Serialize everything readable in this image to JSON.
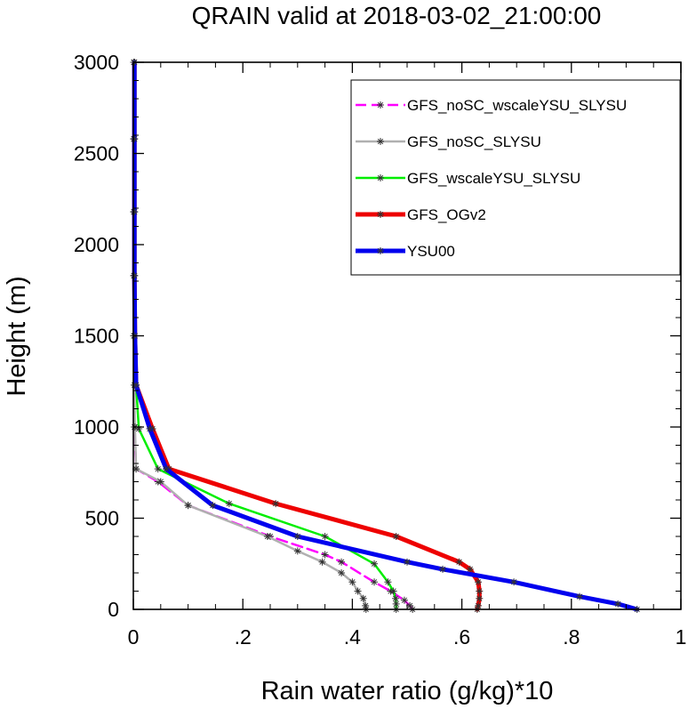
{
  "chart_data": {
    "type": "line",
    "title": "QRAIN valid at 2018-03-02_21:00:00",
    "xlabel": "Rain water ratio (g/kg)*10",
    "ylabel": "Height (m)",
    "xlim": [
      0,
      1
    ],
    "ylim": [
      0,
      3000
    ],
    "xticks": [
      0,
      0.2,
      0.4,
      0.6,
      0.8,
      1
    ],
    "xtick_labels": [
      "0",
      ".2",
      ".4",
      ".6",
      ".8",
      "1"
    ],
    "yticks": [
      0,
      500,
      1000,
      1500,
      2000,
      2500,
      3000
    ],
    "ytick_labels": [
      "0",
      "500",
      "1000",
      "1500",
      "2000",
      "2500",
      "3000"
    ],
    "grid": false,
    "legend_position": "top-right",
    "series": [
      {
        "name": "GFS_noSC_wscaleYSU_SLYSU",
        "color": "#ff00ff",
        "dashed": true,
        "width": 2.5,
        "points": [
          [
            0.51,
            0
          ],
          [
            0.505,
            20
          ],
          [
            0.495,
            50
          ],
          [
            0.47,
            100
          ],
          [
            0.44,
            150
          ],
          [
            0.38,
            260
          ],
          [
            0.35,
            300
          ],
          [
            0.25,
            400
          ],
          [
            0.1,
            570
          ],
          [
            0.045,
            700
          ],
          [
            0.005,
            770
          ],
          [
            0.002,
            1000
          ],
          [
            0.002,
            1230
          ],
          [
            0.001,
            1500
          ],
          [
            0.001,
            1830
          ],
          [
            0.001,
            2180
          ],
          [
            0.001,
            2580
          ],
          [
            0.001,
            3000
          ]
        ]
      },
      {
        "name": "GFS_noSC_SLYSU",
        "color": "#b0b0b0",
        "dashed": false,
        "width": 2.5,
        "points": [
          [
            0.425,
            0
          ],
          [
            0.424,
            20
          ],
          [
            0.42,
            60
          ],
          [
            0.41,
            100
          ],
          [
            0.4,
            150
          ],
          [
            0.38,
            200
          ],
          [
            0.345,
            260
          ],
          [
            0.3,
            320
          ],
          [
            0.245,
            400
          ],
          [
            0.1,
            570
          ],
          [
            0.05,
            700
          ],
          [
            0.005,
            770
          ],
          [
            0.003,
            1000
          ],
          [
            0.002,
            1230
          ],
          [
            0.001,
            1500
          ],
          [
            0.001,
            1830
          ],
          [
            0.001,
            2180
          ],
          [
            0.001,
            2580
          ],
          [
            0.001,
            3000
          ]
        ]
      },
      {
        "name": "GFS_wscaleYSU_SLYSU",
        "color": "#00ee00",
        "dashed": false,
        "width": 2.5,
        "points": [
          [
            0.48,
            0
          ],
          [
            0.48,
            30
          ],
          [
            0.479,
            60
          ],
          [
            0.475,
            100
          ],
          [
            0.465,
            150
          ],
          [
            0.44,
            250
          ],
          [
            0.35,
            400
          ],
          [
            0.175,
            580
          ],
          [
            0.045,
            770
          ],
          [
            0.01,
            990
          ],
          [
            0.005,
            1230
          ],
          [
            0.002,
            1500
          ],
          [
            0.002,
            1830
          ],
          [
            0.001,
            2180
          ],
          [
            0.001,
            2580
          ],
          [
            0.001,
            3000
          ]
        ]
      },
      {
        "name": "GFS_OGv2",
        "color": "#ee0000",
        "dashed": false,
        "width": 5,
        "points": [
          [
            0.628,
            0
          ],
          [
            0.63,
            20
          ],
          [
            0.632,
            60
          ],
          [
            0.632,
            100
          ],
          [
            0.63,
            150
          ],
          [
            0.615,
            220
          ],
          [
            0.595,
            260
          ],
          [
            0.48,
            400
          ],
          [
            0.26,
            580
          ],
          [
            0.065,
            770
          ],
          [
            0.035,
            990
          ],
          [
            0.005,
            1230
          ],
          [
            0.003,
            1500
          ],
          [
            0.002,
            1830
          ],
          [
            0.002,
            2180
          ],
          [
            0.002,
            2580
          ],
          [
            0.002,
            3000
          ]
        ]
      },
      {
        "name": "YSU00",
        "color": "#0000ee",
        "dashed": false,
        "width": 5,
        "points": [
          [
            0.92,
            0
          ],
          [
            0.885,
            30
          ],
          [
            0.815,
            70
          ],
          [
            0.695,
            150
          ],
          [
            0.565,
            220
          ],
          [
            0.5,
            260
          ],
          [
            0.3,
            400
          ],
          [
            0.145,
            570
          ],
          [
            0.06,
            770
          ],
          [
            0.03,
            990
          ],
          [
            0.005,
            1230
          ],
          [
            0.003,
            1500
          ],
          [
            0.002,
            1830
          ],
          [
            0.002,
            2180
          ],
          [
            0.002,
            2580
          ],
          [
            0.002,
            3000
          ]
        ]
      }
    ]
  }
}
